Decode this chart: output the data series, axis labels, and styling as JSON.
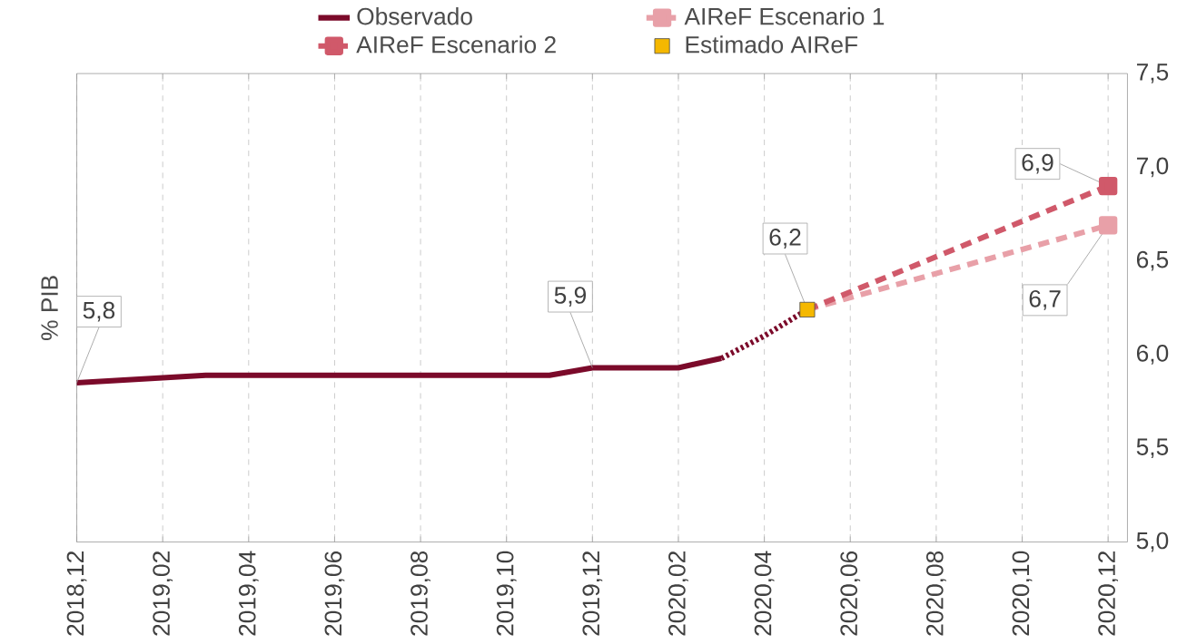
{
  "chart_data": {
    "type": "line",
    "categories": [
      "2018,12",
      null,
      "2019,02",
      null,
      "2019,04",
      null,
      "2019,06",
      null,
      "2019,08",
      null,
      "2019,10",
      null,
      "2019,12",
      null,
      "2020,02",
      null,
      "2020,04",
      null,
      "2020,06",
      null,
      "2020,08",
      null,
      "2020,10",
      null,
      "2020,12"
    ],
    "ylabel": "% PIB",
    "ylim": [
      5.0,
      7.5
    ],
    "yticks": [
      {
        "value": 5.0,
        "label": "5,0"
      },
      {
        "value": 5.5,
        "label": "5,5"
      },
      {
        "value": 6.0,
        "label": "6,0"
      },
      {
        "value": 6.5,
        "label": "6,5"
      },
      {
        "value": 7.0,
        "label": "7,0"
      },
      {
        "value": 7.5,
        "label": "7,5"
      }
    ],
    "grid": "x",
    "legend": "top",
    "series": [
      {
        "name": "Observado",
        "color": "#7b0a2a",
        "line_style": "solid",
        "values": [
          5.85,
          null,
          null,
          5.89,
          null,
          null,
          null,
          null,
          null,
          null,
          null,
          5.89,
          5.93,
          null,
          5.93,
          5.98,
          null,
          null,
          null,
          null,
          null,
          null,
          null,
          null,
          null
        ],
        "value_labels": [
          "5,8",
          null,
          null,
          null,
          null,
          null,
          null,
          null,
          null,
          null,
          null,
          null,
          "5,9",
          null,
          null,
          null,
          null,
          null,
          null,
          null,
          null,
          null,
          null,
          null,
          null
        ]
      },
      {
        "name": "AIReF Escenario 1",
        "color": "#e8a0a8",
        "line_style": "dashed",
        "marker": "square",
        "values": [
          null,
          null,
          null,
          null,
          null,
          null,
          null,
          null,
          null,
          null,
          null,
          null,
          null,
          null,
          null,
          null,
          null,
          6.24,
          null,
          null,
          null,
          null,
          null,
          null,
          6.69
        ],
        "value_labels": [
          null,
          null,
          null,
          null,
          null,
          null,
          null,
          null,
          null,
          null,
          null,
          null,
          null,
          null,
          null,
          null,
          null,
          null,
          null,
          null,
          null,
          null,
          null,
          null,
          "6,7"
        ]
      },
      {
        "name": "AIReF Escenario 2",
        "color": "#d0596a",
        "line_style": "dashed",
        "marker": "square",
        "values": [
          null,
          null,
          null,
          null,
          null,
          null,
          null,
          null,
          null,
          null,
          null,
          null,
          null,
          null,
          null,
          null,
          null,
          6.24,
          null,
          null,
          null,
          null,
          null,
          null,
          6.9
        ],
        "value_labels": [
          null,
          null,
          null,
          null,
          null,
          null,
          null,
          null,
          null,
          null,
          null,
          null,
          null,
          null,
          null,
          null,
          null,
          null,
          null,
          null,
          null,
          null,
          null,
          null,
          "6,9"
        ]
      },
      {
        "name": "Estimado AIReF",
        "type": "scatter",
        "color": "#f5b800",
        "marker": "square",
        "values": [
          null,
          null,
          null,
          null,
          null,
          null,
          null,
          null,
          null,
          null,
          null,
          null,
          null,
          null,
          null,
          null,
          null,
          6.24,
          null,
          null,
          null,
          null,
          null,
          null,
          null
        ],
        "value_labels": [
          null,
          null,
          null,
          null,
          null,
          null,
          null,
          null,
          null,
          null,
          null,
          null,
          null,
          null,
          null,
          null,
          null,
          "6,2",
          null,
          null,
          null,
          null,
          null,
          null,
          null
        ]
      },
      {
        "color": "#7b0a2a",
        "line_style": "dotted",
        "values": [
          null,
          null,
          null,
          null,
          null,
          null,
          null,
          null,
          null,
          null,
          null,
          null,
          null,
          null,
          null,
          5.98,
          6.1,
          6.24,
          null,
          null,
          null,
          null,
          null,
          null,
          null
        ]
      }
    ]
  }
}
